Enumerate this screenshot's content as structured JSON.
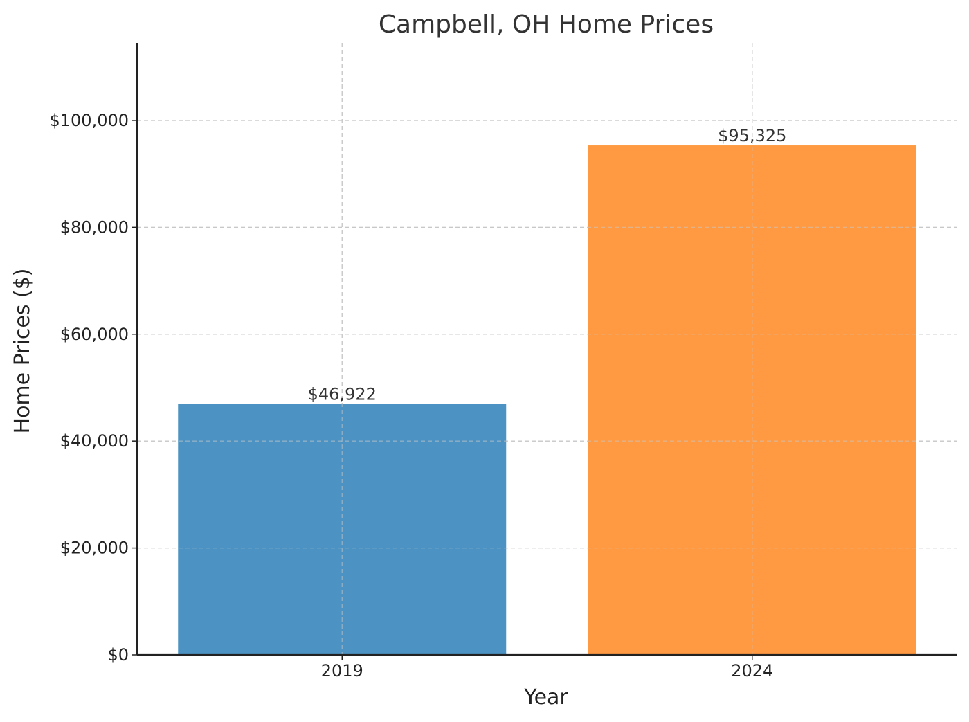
{
  "chart_data": {
    "type": "bar",
    "title": "Campbell, OH Home Prices",
    "xlabel": "Year",
    "ylabel": "Home Prices ($)",
    "categories": [
      "2019",
      "2024"
    ],
    "values": [
      46922,
      95325
    ],
    "value_labels": [
      "$46,922",
      "$95,325"
    ],
    "bar_colors": [
      "#4c92c3",
      "#ff9a42"
    ],
    "ylim": [
      0,
      114500
    ],
    "yticks": [
      0,
      20000,
      40000,
      60000,
      80000,
      100000
    ],
    "ytick_labels": [
      "$0",
      "$20,000",
      "$40,000",
      "$60,000",
      "$80,000",
      "$100,000"
    ],
    "grid": true,
    "legend": "none"
  }
}
